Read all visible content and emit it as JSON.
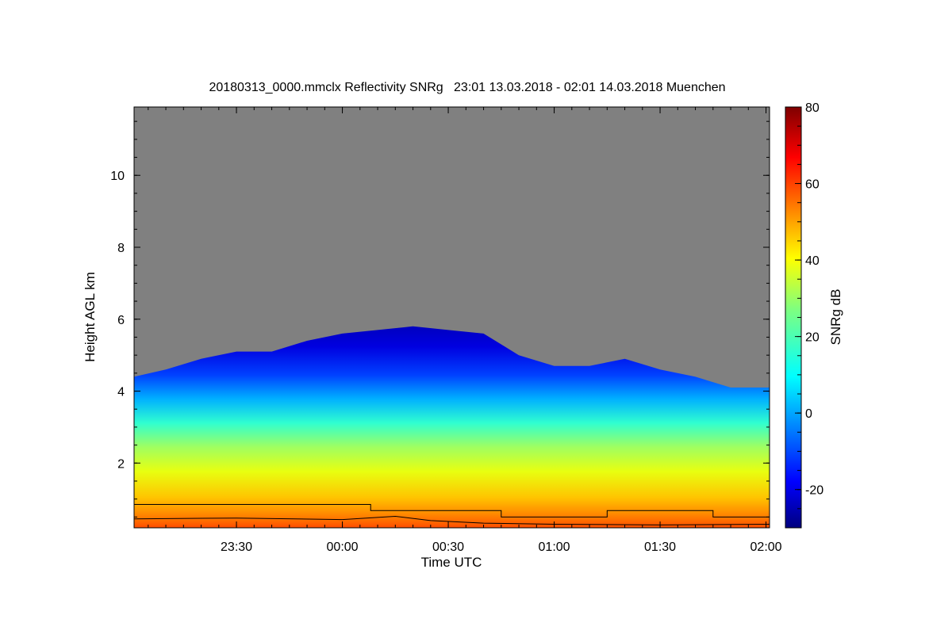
{
  "chart_data": {
    "type": "heatmap",
    "title": "20180313_0000.mmclx Reflectivity SNRg   23:01 13.03.2018 - 02:01 14.03.2018 Muenchen",
    "xlabel": "Time UTC",
    "ylabel": "Height AGL km",
    "xlim": [
      "23:01",
      "02:01"
    ],
    "ylim": [
      0.2,
      11.9
    ],
    "x_ticks": [
      "23:30",
      "00:00",
      "00:30",
      "01:00",
      "01:30",
      "02:00"
    ],
    "y_ticks": [
      "2",
      "4",
      "6",
      "8",
      "10"
    ],
    "colorbar": {
      "label": "SNRg dB",
      "range": [
        -30,
        80
      ],
      "ticks": [
        "-20",
        "0",
        "20",
        "40",
        "60",
        "80"
      ],
      "colormap": "jet"
    },
    "background_color": "#808080",
    "cloud_top_km": [
      [
        "23:01",
        4.4
      ],
      [
        "23:10",
        4.6
      ],
      [
        "23:20",
        4.9
      ],
      [
        "23:30",
        5.1
      ],
      [
        "23:40",
        5.1
      ],
      [
        "23:50",
        5.4
      ],
      [
        "00:00",
        5.6
      ],
      [
        "00:10",
        5.7
      ],
      [
        "00:20",
        5.8
      ],
      [
        "00:30",
        5.7
      ],
      [
        "00:40",
        5.6
      ],
      [
        "00:50",
        5.0
      ],
      [
        "01:00",
        4.7
      ],
      [
        "01:10",
        4.7
      ],
      [
        "01:20",
        4.9
      ],
      [
        "01:30",
        4.6
      ],
      [
        "01:40",
        4.4
      ],
      [
        "01:50",
        4.1
      ],
      [
        "02:01",
        4.1
      ]
    ],
    "step_line_km": [
      [
        "23:01",
        0.85
      ],
      [
        "00:08",
        0.85
      ],
      [
        "00:08",
        0.68
      ],
      [
        "00:45",
        0.68
      ],
      [
        "00:45",
        0.5
      ],
      [
        "01:15",
        0.5
      ],
      [
        "01:15",
        0.68
      ],
      [
        "01:45",
        0.68
      ],
      [
        "01:45",
        0.5
      ],
      [
        "02:01",
        0.5
      ]
    ],
    "lower_line_km": [
      [
        "23:01",
        0.45
      ],
      [
        "23:30",
        0.47
      ],
      [
        "00:00",
        0.43
      ],
      [
        "00:15",
        0.52
      ],
      [
        "00:25",
        0.4
      ],
      [
        "00:40",
        0.33
      ],
      [
        "01:00",
        0.3
      ],
      [
        "01:30",
        0.28
      ],
      [
        "02:01",
        0.3
      ]
    ]
  }
}
